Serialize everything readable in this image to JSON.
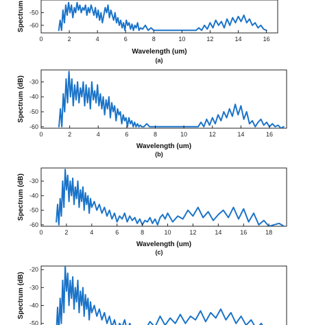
{
  "chart_data": [
    {
      "type": "line",
      "caption": "(a)",
      "xlabel": "Wavelength (um)",
      "ylabel": "Spectrum",
      "xlim": [
        0,
        16.8
      ],
      "ylim": [
        -66,
        -40
      ],
      "xticks": [
        0,
        2,
        4,
        6,
        8,
        10,
        12,
        14,
        16
      ],
      "yticks": [
        -50,
        -60
      ],
      "series": [
        {
          "x": [
            1.25,
            1.35,
            1.45,
            1.55,
            1.65,
            1.75,
            1.85,
            1.95,
            2.05,
            2.15,
            2.25,
            2.35,
            2.45,
            2.55,
            2.65,
            2.75,
            2.85,
            2.95,
            3.05,
            3.15,
            3.25,
            3.35,
            3.45,
            3.55,
            3.65,
            3.75,
            3.85,
            3.95,
            4.05,
            4.15,
            4.25,
            4.35,
            4.45,
            4.55,
            4.65,
            4.75,
            4.85,
            4.95,
            5.05,
            5.15,
            5.25,
            5.35,
            5.45,
            5.55,
            5.65,
            5.75,
            5.85,
            5.95,
            6.05,
            6.15,
            6.25,
            6.35,
            6.45,
            6.55,
            6.65,
            6.75,
            6.85,
            6.95,
            7.05,
            7.2,
            7.4,
            7.6,
            7.8,
            8.0,
            11.0,
            11.2,
            11.4,
            11.6,
            11.8,
            12.0,
            12.2,
            12.4,
            12.6,
            12.8,
            13.0,
            13.2,
            13.4,
            13.6,
            13.8,
            14.0,
            14.2,
            14.4,
            14.6,
            14.8,
            15.0,
            15.2,
            15.4,
            15.6,
            15.8,
            16.0
          ],
          "y": [
            -64,
            -56,
            -64,
            -48,
            -58,
            -44,
            -52,
            -42,
            -50,
            -44,
            -54,
            -46,
            -50,
            -42,
            -48,
            -44,
            -50,
            -46,
            -48,
            -44,
            -52,
            -46,
            -50,
            -44,
            -48,
            -52,
            -46,
            -54,
            -48,
            -56,
            -50,
            -58,
            -52,
            -46,
            -50,
            -44,
            -54,
            -48,
            -52,
            -56,
            -50,
            -58,
            -54,
            -60,
            -56,
            -62,
            -58,
            -64,
            -56,
            -60,
            -58,
            -63,
            -59,
            -64,
            -60,
            -62,
            -58,
            -64,
            -62,
            -63,
            -60,
            -64,
            -62,
            -64,
            -64,
            -62,
            -64,
            -60,
            -63,
            -58,
            -62,
            -56,
            -60,
            -57,
            -62,
            -55,
            -60,
            -54,
            -58,
            -53,
            -57,
            -52,
            -58,
            -55,
            -60,
            -58,
            -62,
            -60,
            -63,
            -64
          ]
        }
      ]
    },
    {
      "type": "line",
      "caption": "(b)",
      "xlabel": "Wavelength (um)",
      "ylabel": "Spectrum (dB)",
      "xlim": [
        0,
        17.2
      ],
      "ylim": [
        -61,
        -22
      ],
      "xticks": [
        0,
        2,
        4,
        6,
        8,
        10,
        12,
        14,
        16
      ],
      "yticks": [
        -30,
        -40,
        -50,
        -60
      ],
      "series": [
        {
          "x": [
            1.25,
            1.35,
            1.45,
            1.55,
            1.65,
            1.75,
            1.85,
            1.95,
            2.05,
            2.15,
            2.25,
            2.35,
            2.45,
            2.55,
            2.65,
            2.75,
            2.85,
            2.95,
            3.05,
            3.15,
            3.25,
            3.35,
            3.45,
            3.55,
            3.65,
            3.75,
            3.85,
            3.95,
            4.05,
            4.15,
            4.25,
            4.35,
            4.45,
            4.55,
            4.65,
            4.75,
            4.85,
            4.95,
            5.05,
            5.15,
            5.25,
            5.35,
            5.45,
            5.55,
            5.65,
            5.75,
            5.85,
            5.95,
            6.05,
            6.15,
            6.25,
            6.35,
            6.45,
            6.55,
            6.65,
            6.75,
            6.85,
            6.95,
            7.05,
            7.2,
            7.4,
            7.6,
            7.8,
            11.0,
            11.2,
            11.4,
            11.6,
            11.8,
            12.0,
            12.2,
            12.4,
            12.6,
            12.8,
            13.0,
            13.2,
            13.4,
            13.6,
            13.8,
            14.0,
            14.2,
            14.4,
            14.6,
            14.8,
            15.0,
            15.2,
            15.4,
            15.6,
            15.8,
            16.0,
            16.2,
            16.4,
            16.6,
            16.8,
            17.0
          ],
          "y": [
            -60,
            -48,
            -60,
            -38,
            -50,
            -28,
            -44,
            -23,
            -40,
            -28,
            -46,
            -32,
            -42,
            -30,
            -44,
            -34,
            -40,
            -30,
            -46,
            -32,
            -44,
            -34,
            -48,
            -30,
            -42,
            -36,
            -44,
            -32,
            -46,
            -38,
            -48,
            -40,
            -52,
            -42,
            -48,
            -40,
            -54,
            -44,
            -50,
            -46,
            -56,
            -48,
            -52,
            -50,
            -58,
            -52,
            -56,
            -54,
            -60,
            -54,
            -58,
            -56,
            -60,
            -57,
            -60,
            -58,
            -60,
            -59,
            -60,
            -60,
            -58,
            -60,
            -60,
            -60,
            -57,
            -60,
            -55,
            -59,
            -54,
            -58,
            -52,
            -56,
            -50,
            -54,
            -48,
            -53,
            -45,
            -52,
            -46,
            -55,
            -50,
            -58,
            -56,
            -60,
            -57,
            -55,
            -59,
            -57,
            -60,
            -58,
            -60,
            -59,
            -61,
            -60
          ]
        }
      ]
    },
    {
      "type": "line",
      "caption": "(c)",
      "xlabel": "Wavelength (um)",
      "ylabel": "Spectrum (dB)",
      "xlim": [
        0,
        19.4
      ],
      "ylim": [
        -61,
        -21
      ],
      "xticks": [
        0,
        2,
        4,
        6,
        8,
        10,
        12,
        14,
        16,
        18
      ],
      "yticks": [
        -30,
        -40,
        -50,
        -60
      ],
      "series": [
        {
          "x": [
            1.2,
            1.3,
            1.4,
            1.5,
            1.6,
            1.7,
            1.8,
            1.9,
            2.0,
            2.1,
            2.2,
            2.3,
            2.4,
            2.5,
            2.6,
            2.7,
            2.8,
            2.9,
            3.0,
            3.1,
            3.2,
            3.3,
            3.4,
            3.5,
            3.6,
            3.7,
            3.8,
            3.9,
            4.0,
            4.2,
            4.4,
            4.6,
            4.8,
            5.0,
            5.2,
            5.4,
            5.6,
            5.8,
            6.0,
            6.2,
            6.4,
            6.6,
            6.8,
            7.0,
            7.2,
            7.4,
            7.6,
            7.8,
            8.0,
            8.2,
            8.4,
            8.6,
            8.8,
            9.0,
            9.2,
            9.4,
            9.6,
            9.8,
            10.0,
            10.4,
            10.8,
            11.2,
            11.6,
            12.0,
            12.4,
            12.8,
            13.2,
            13.6,
            14.0,
            14.4,
            14.8,
            15.2,
            15.6,
            16.0,
            16.4,
            16.8,
            17.2,
            17.6,
            18.0,
            18.4,
            18.8,
            19.2
          ],
          "y": [
            -58,
            -46,
            -60,
            -42,
            -54,
            -30,
            -48,
            -22,
            -36,
            -26,
            -44,
            -30,
            -40,
            -28,
            -46,
            -34,
            -42,
            -30,
            -48,
            -36,
            -44,
            -34,
            -50,
            -38,
            -46,
            -40,
            -52,
            -42,
            -48,
            -44,
            -50,
            -46,
            -52,
            -48,
            -54,
            -50,
            -56,
            -52,
            -58,
            -54,
            -56,
            -52,
            -58,
            -54,
            -57,
            -55,
            -59,
            -56,
            -60,
            -57,
            -58,
            -55,
            -59,
            -56,
            -60,
            -55,
            -53,
            -56,
            -52,
            -58,
            -54,
            -56,
            -50,
            -54,
            -48,
            -55,
            -51,
            -57,
            -53,
            -50,
            -55,
            -48,
            -56,
            -49,
            -58,
            -52,
            -60,
            -57,
            -61,
            -60,
            -59,
            -61
          ]
        }
      ]
    },
    {
      "type": "line",
      "caption": "",
      "xlabel": "",
      "ylabel": "Spectrum (dB)",
      "xlim": [
        0,
        19.4
      ],
      "ylim": [
        -57,
        -18
      ],
      "xticks": [],
      "yticks": [
        -20,
        -30,
        -40,
        -50
      ],
      "series": [
        {
          "x": [
            1.2,
            1.3,
            1.4,
            1.5,
            1.6,
            1.7,
            1.8,
            1.9,
            2.0,
            2.1,
            2.2,
            2.3,
            2.4,
            2.5,
            2.6,
            2.7,
            2.8,
            2.9,
            3.0,
            3.1,
            3.2,
            3.3,
            3.4,
            3.5,
            3.6,
            3.7,
            3.8,
            3.9,
            4.0,
            4.2,
            4.4,
            4.6,
            4.8,
            5.0,
            5.2,
            5.4,
            5.6,
            5.8,
            6.0,
            6.2,
            6.4,
            6.6,
            6.8,
            7.0,
            7.4,
            7.8,
            8.2,
            8.6,
            9.0,
            9.4,
            9.8,
            10.2,
            10.6,
            11.0,
            11.4,
            11.8,
            12.2,
            12.6,
            13.0,
            13.4,
            13.8,
            14.2,
            14.6,
            15.0,
            15.4,
            15.8,
            16.2,
            16.6,
            17.0,
            17.4,
            17.8,
            18.2,
            18.6,
            19.0,
            19.3
          ],
          "y": [
            -55,
            -41,
            -56,
            -36,
            -50,
            -26,
            -44,
            -18,
            -32,
            -22,
            -40,
            -26,
            -36,
            -24,
            -42,
            -30,
            -38,
            -26,
            -44,
            -32,
            -40,
            -30,
            -46,
            -34,
            -42,
            -36,
            -48,
            -38,
            -44,
            -40,
            -46,
            -42,
            -48,
            -44,
            -50,
            -46,
            -52,
            -48,
            -54,
            -50,
            -52,
            -48,
            -54,
            -50,
            -56,
            -52,
            -54,
            -49,
            -52,
            -46,
            -51,
            -47,
            -50,
            -45,
            -50,
            -46,
            -48,
            -43,
            -49,
            -44,
            -47,
            -42,
            -48,
            -44,
            -50,
            -46,
            -51,
            -48,
            -53,
            -50,
            -55,
            -52,
            -56,
            -54,
            -56
          ]
        }
      ]
    }
  ]
}
